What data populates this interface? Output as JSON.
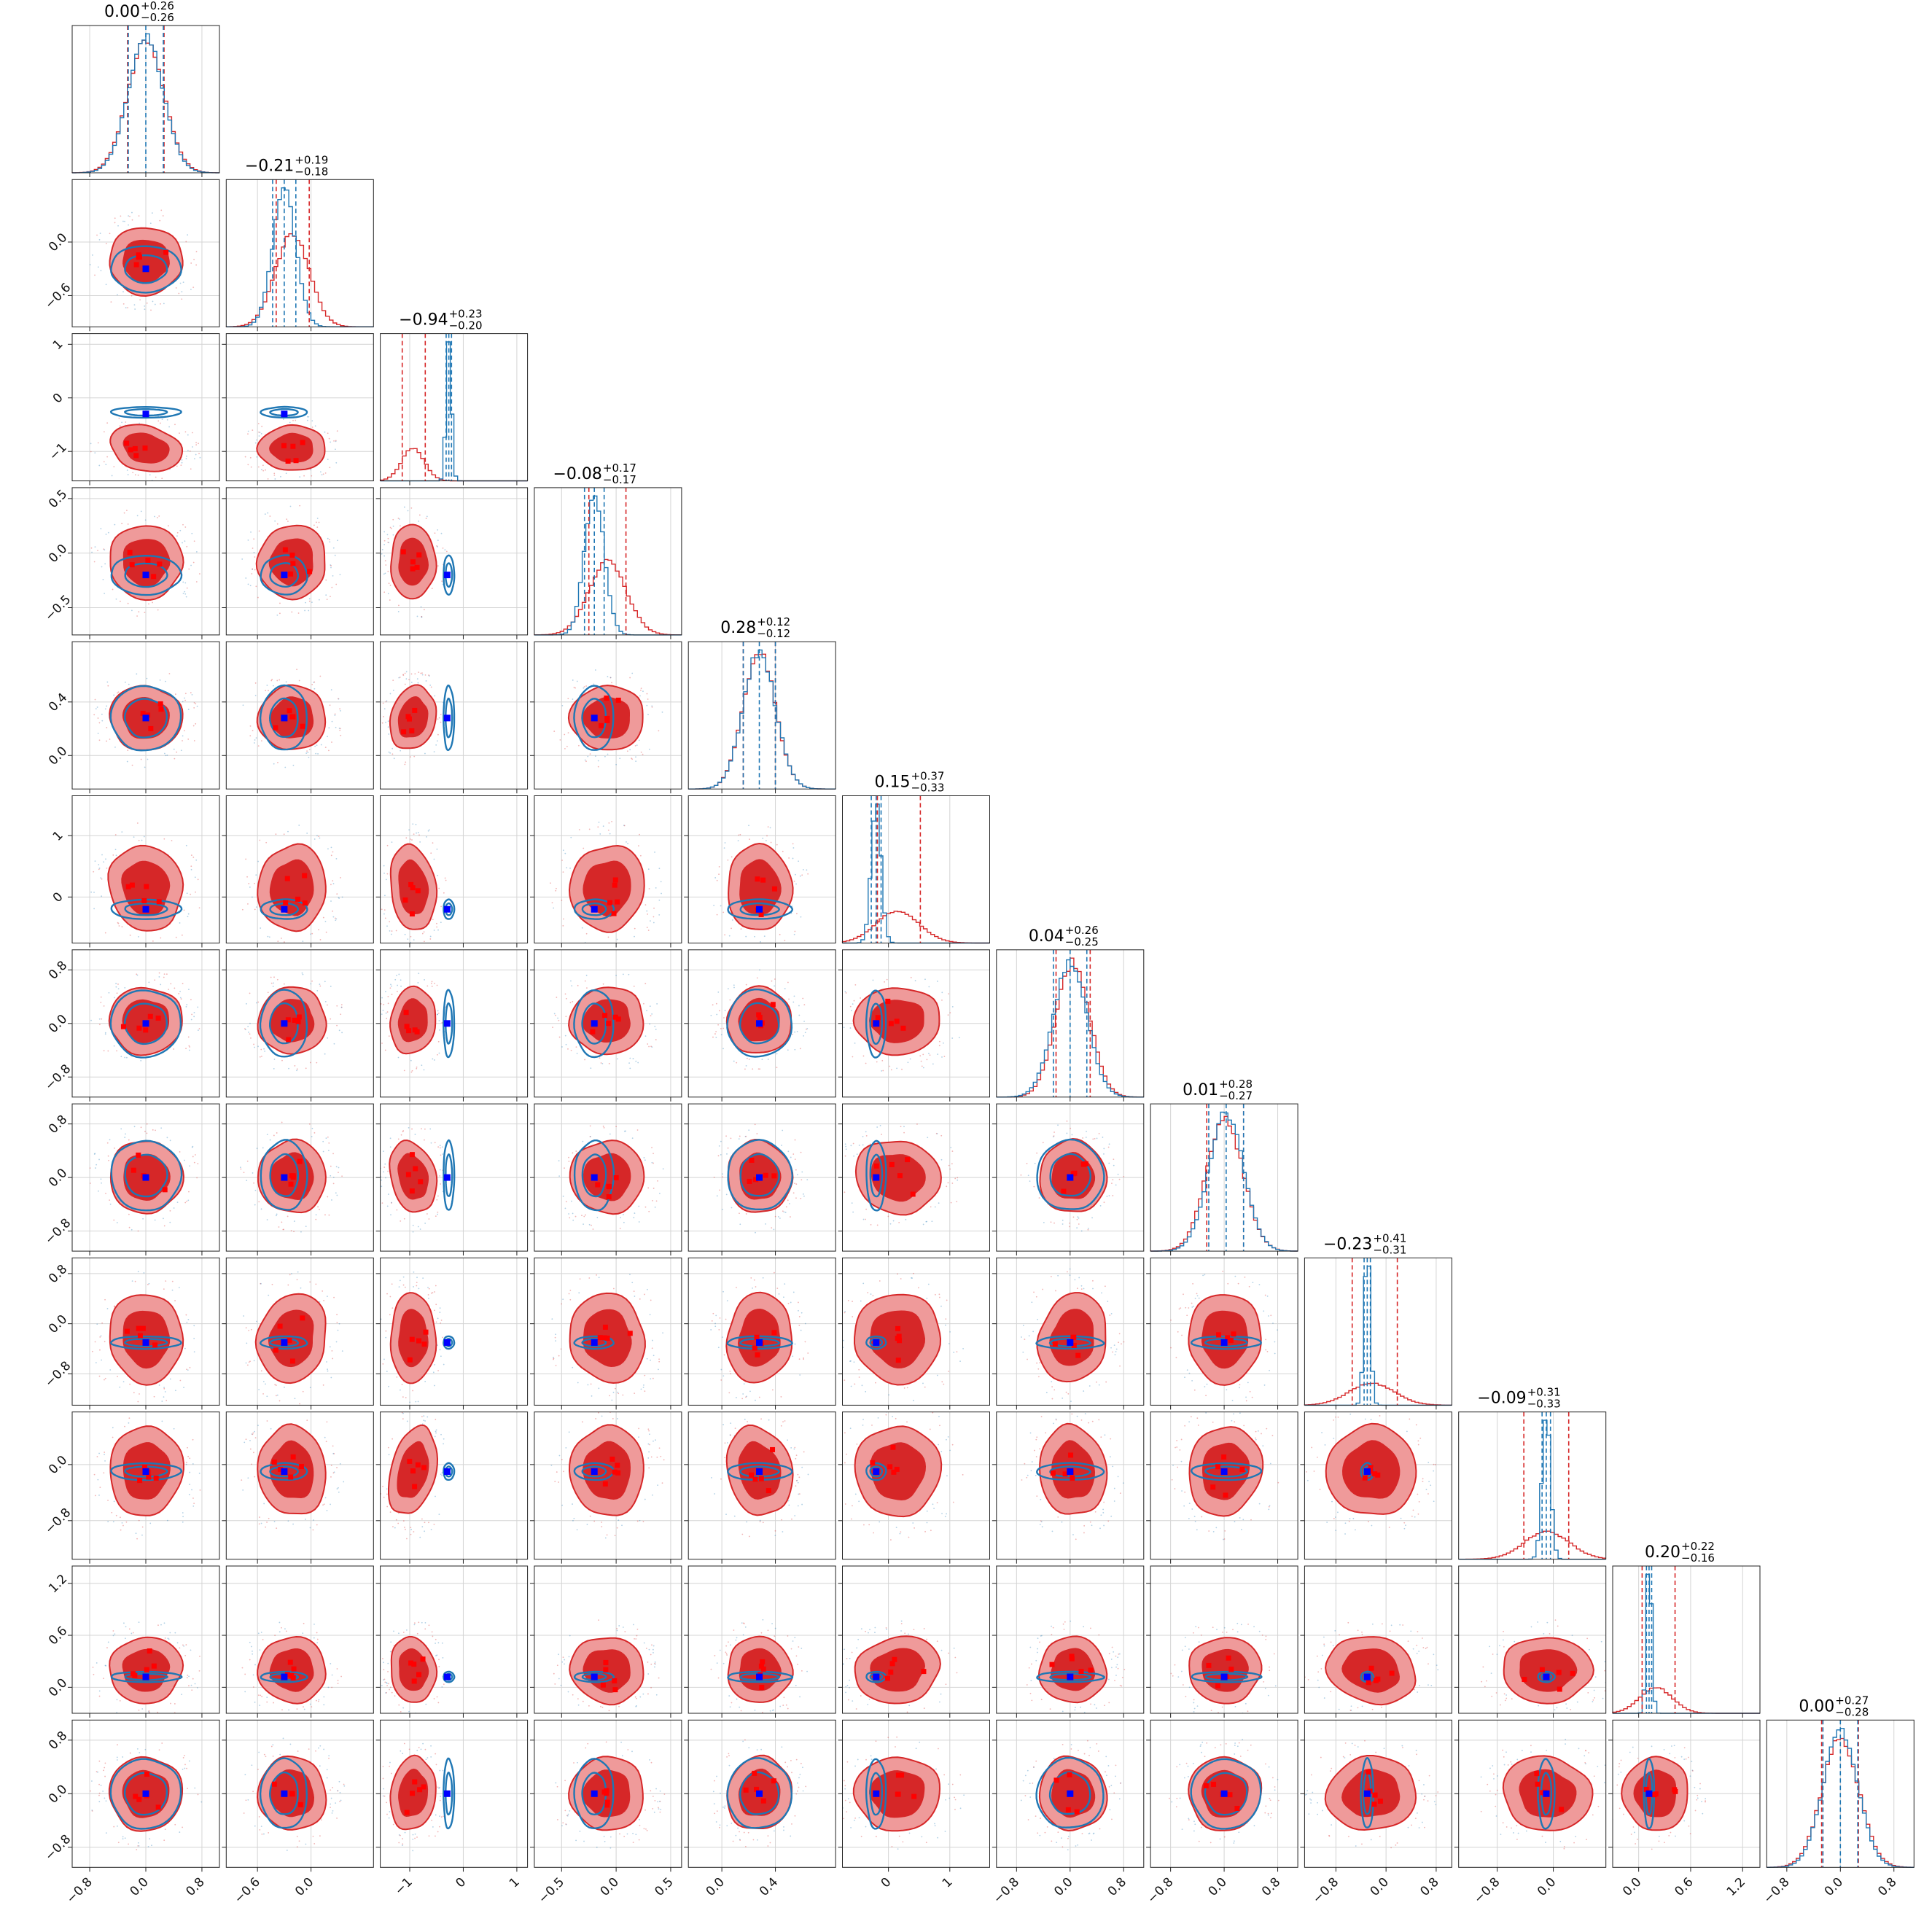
{
  "chart_data": {
    "type": "corner",
    "n_params": 12,
    "grid": true,
    "colors": {
      "series_a": "#d62728",
      "series_a_fill_light": "#ef9a9a",
      "series_a_fill_dark": "#d62728",
      "series_b": "#1f77b4",
      "truth": "#0000ff",
      "truth_alt": "#ff0000"
    },
    "params": [
      {
        "title": "0.00",
        "plus": "+0.26",
        "minus": "−0.26",
        "range": [
          -1.05,
          1.05
        ],
        "ticks": [
          -0.8,
          0.0,
          0.8
        ],
        "tick_labels": [
          "−0.8",
          "0.0",
          "0.8"
        ],
        "truth": 0.0,
        "a": {
          "mean": 0.0,
          "sd": 0.26
        },
        "b": {
          "mean": 0.0,
          "sd": 0.25
        },
        "q_a": [
          -0.26,
          0.26
        ],
        "q_b": [
          -0.25,
          0.25
        ]
      },
      {
        "title": "−0.21",
        "plus": "+0.19",
        "minus": "−0.18",
        "range": [
          -0.95,
          0.7
        ],
        "ticks": [
          -0.6,
          0.0
        ],
        "tick_labels": [
          "−0.6",
          "0.0"
        ],
        "truth": -0.3,
        "a": {
          "mean": -0.21,
          "sd": 0.19
        },
        "b": {
          "mean": -0.3,
          "sd": 0.13
        },
        "q_a": [
          -0.39,
          -0.02
        ],
        "q_b": [
          -0.43,
          -0.17
        ]
      },
      {
        "title": "−0.94",
        "plus": "+0.23",
        "minus": "−0.20",
        "range": [
          -1.55,
          1.2
        ],
        "ticks": [
          -1,
          0,
          1
        ],
        "tick_labels": [
          "−1",
          "0",
          "1"
        ],
        "truth": -0.3,
        "a": {
          "mean": -0.94,
          "sd": 0.21
        },
        "b": {
          "mean": -0.27,
          "sd": 0.05
        },
        "q_a": [
          -1.14,
          -0.71
        ],
        "q_b": [
          -0.32,
          -0.22
        ]
      },
      {
        "title": "−0.08",
        "plus": "+0.17",
        "minus": "−0.17",
        "range": [
          -0.75,
          0.6
        ],
        "ticks": [
          -0.5,
          0.0,
          0.5
        ],
        "tick_labels": [
          "−0.5",
          "0.0",
          "0.5"
        ],
        "truth": -0.2,
        "a": {
          "mean": -0.08,
          "sd": 0.17
        },
        "b": {
          "mean": -0.2,
          "sd": 0.09
        },
        "q_a": [
          -0.25,
          0.09
        ],
        "q_b": [
          -0.29,
          -0.11
        ]
      },
      {
        "title": "0.28",
        "plus": "+0.12",
        "minus": "−0.12",
        "range": [
          -0.25,
          0.85
        ],
        "ticks": [
          0.0,
          0.4
        ],
        "tick_labels": [
          "0.0",
          "0.4"
        ],
        "truth": 0.28,
        "a": {
          "mean": 0.28,
          "sd": 0.12
        },
        "b": {
          "mean": 0.28,
          "sd": 0.12
        },
        "q_a": [
          0.16,
          0.4
        ],
        "q_b": [
          0.16,
          0.4
        ]
      },
      {
        "title": "0.15",
        "plus": "+0.37",
        "minus": "−0.33",
        "range": [
          -0.75,
          1.65
        ],
        "ticks": [
          0,
          1
        ],
        "tick_labels": [
          "0",
          "1"
        ],
        "truth": -0.2,
        "a": {
          "mean": 0.15,
          "sd": 0.35
        },
        "b": {
          "mean": -0.2,
          "sd": 0.08
        },
        "q_a": [
          -0.18,
          0.52
        ],
        "q_b": [
          -0.28,
          -0.12
        ]
      },
      {
        "title": "0.04",
        "plus": "+0.26",
        "minus": "−0.25",
        "range": [
          -1.1,
          1.1
        ],
        "ticks": [
          -0.8,
          0.0,
          0.8
        ],
        "tick_labels": [
          "−0.8",
          "0.0",
          "0.8"
        ],
        "truth": 0.0,
        "a": {
          "mean": 0.04,
          "sd": 0.25
        },
        "b": {
          "mean": 0.0,
          "sd": 0.25
        },
        "q_a": [
          -0.21,
          0.3
        ],
        "q_b": [
          -0.25,
          0.25
        ]
      },
      {
        "title": "0.01",
        "plus": "+0.28",
        "minus": "−0.27",
        "range": [
          -1.1,
          1.1
        ],
        "ticks": [
          -0.8,
          0.0,
          0.8
        ],
        "tick_labels": [
          "−0.8",
          "0.0",
          "0.8"
        ],
        "truth": 0.0,
        "a": {
          "mean": 0.01,
          "sd": 0.27
        },
        "b": {
          "mean": 0.03,
          "sd": 0.26
        },
        "q_a": [
          -0.26,
          0.29
        ],
        "q_b": [
          -0.23,
          0.29
        ]
      },
      {
        "title": "−0.23",
        "plus": "+0.41",
        "minus": "−0.31",
        "range": [
          -1.3,
          1.05
        ],
        "ticks": [
          -0.8,
          0.0,
          0.8
        ],
        "tick_labels": [
          "−0.8",
          "0.0",
          "0.8"
        ],
        "truth": -0.3,
        "a": {
          "mean": -0.23,
          "sd": 0.36
        },
        "b": {
          "mean": -0.3,
          "sd": 0.05
        },
        "q_a": [
          -0.54,
          0.18
        ],
        "q_b": [
          -0.35,
          -0.25
        ]
      },
      {
        "title": "−0.09",
        "plus": "+0.31",
        "minus": "−0.33",
        "range": [
          -1.35,
          0.75
        ],
        "ticks": [
          -0.8,
          0.0
        ],
        "tick_labels": [
          "−0.8",
          "0.0"
        ],
        "truth": -0.1,
        "a": {
          "mean": -0.09,
          "sd": 0.32
        },
        "b": {
          "mean": -0.1,
          "sd": 0.06
        },
        "q_a": [
          -0.42,
          0.22
        ],
        "q_b": [
          -0.16,
          -0.04
        ]
      },
      {
        "title": "0.20",
        "plus": "+0.22",
        "minus": "−0.16",
        "range": [
          -0.3,
          1.4
        ],
        "ticks": [
          0.0,
          0.6,
          1.2
        ],
        "tick_labels": [
          "0.0",
          "0.6",
          "1.2"
        ],
        "truth": 0.12,
        "a": {
          "mean": 0.2,
          "sd": 0.19
        },
        "b": {
          "mean": 0.12,
          "sd": 0.03
        },
        "q_a": [
          0.04,
          0.42
        ],
        "q_b": [
          0.09,
          0.15
        ]
      },
      {
        "title": "0.00",
        "plus": "+0.27",
        "minus": "−0.28",
        "range": [
          -1.1,
          1.1
        ],
        "ticks": [
          -0.8,
          0.0,
          0.8
        ],
        "tick_labels": [
          "−0.8",
          "0.0",
          "0.8"
        ],
        "truth": 0.0,
        "a": {
          "mean": 0.0,
          "sd": 0.275
        },
        "b": {
          "mean": 0.0,
          "sd": 0.26
        },
        "q_a": [
          -0.28,
          0.27
        ],
        "q_b": [
          -0.26,
          0.26
        ]
      }
    ]
  }
}
